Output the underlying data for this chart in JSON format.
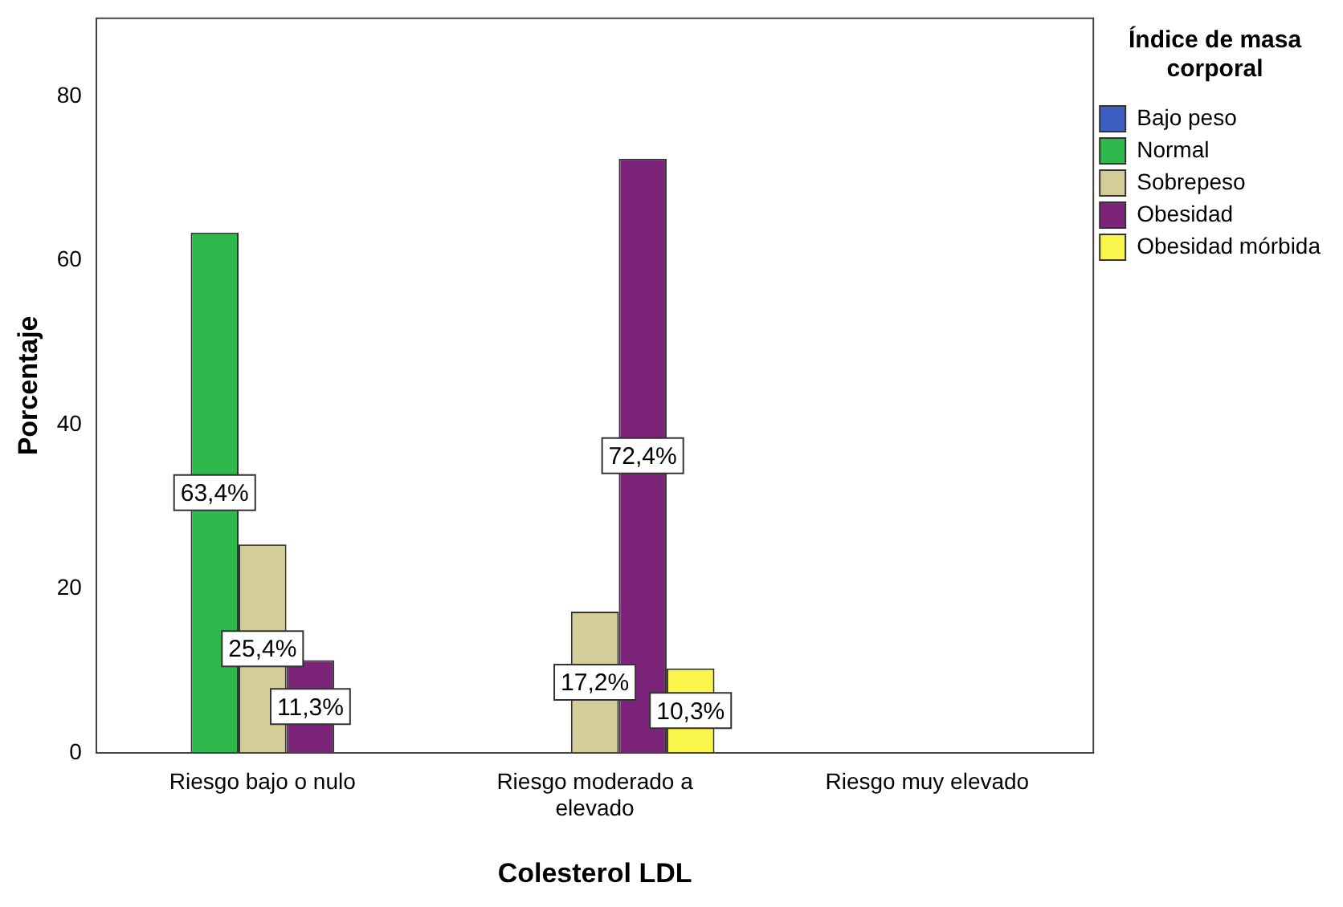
{
  "chart_data": {
    "type": "bar",
    "xlabel": "Colesterol LDL",
    "ylabel": "Porcentaje",
    "legend_title": "Índice de masa corporal",
    "legend": "right",
    "categories": [
      "Riesgo bajo o nulo",
      "Riesgo moderado a elevado",
      "Riesgo muy elevado"
    ],
    "series": [
      {
        "name": "Bajo peso",
        "color": "#3d5fc4",
        "values": [
          null,
          null,
          null
        ]
      },
      {
        "name": "Normal",
        "color": "#2fb84c",
        "values": [
          63.4,
          null,
          null
        ],
        "value_labels": [
          "63,4%",
          null,
          null
        ]
      },
      {
        "name": "Sobrepeso",
        "color": "#d5cd98",
        "values": [
          25.4,
          17.2,
          null
        ],
        "value_labels": [
          "25,4%",
          "17,2%",
          null
        ]
      },
      {
        "name": "Obesidad",
        "color": "#7b2479",
        "values": [
          11.3,
          72.4,
          null
        ],
        "value_labels": [
          "11,3%",
          "72,4%",
          null
        ]
      },
      {
        "name": "Obesidad mórbida",
        "color": "#f9f54a",
        "values": [
          null,
          10.3,
          null
        ],
        "value_labels": [
          null,
          "10,3%",
          null
        ]
      }
    ],
    "ylim": [
      0,
      89.5
    ],
    "yticks": [
      0,
      20,
      40,
      60,
      80
    ],
    "grid": false
  }
}
